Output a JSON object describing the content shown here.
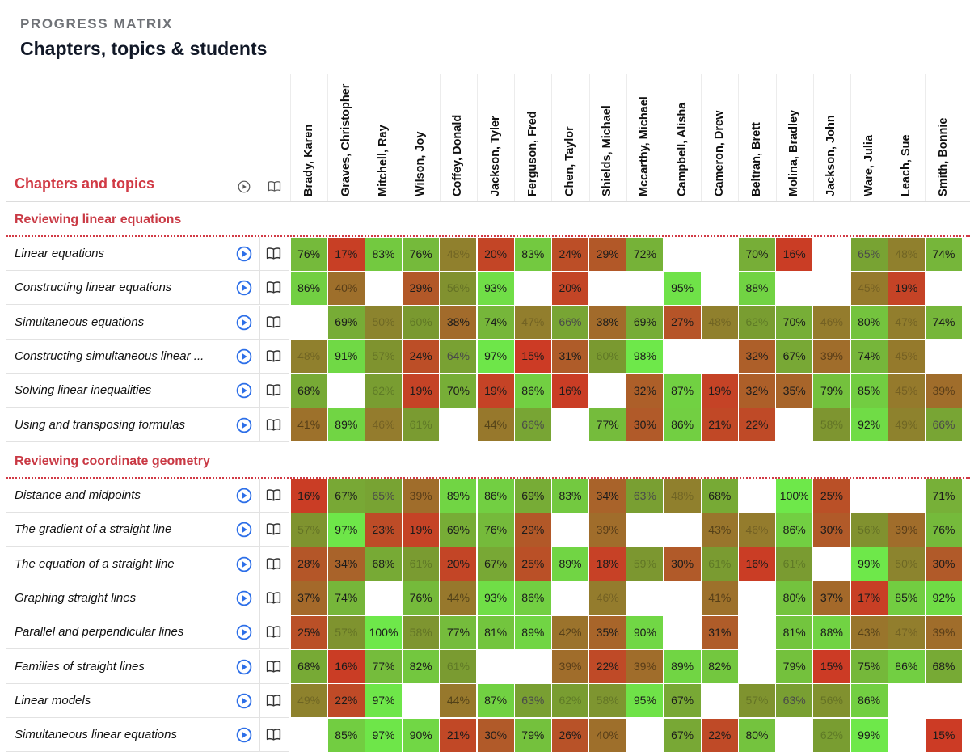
{
  "header": {
    "eyebrow": "PROGRESS MATRIX",
    "title": "Chapters, topics & students"
  },
  "column_header": {
    "label": "Chapters and topics",
    "icons": [
      "play-circle-icon",
      "book-icon"
    ]
  },
  "students": [
    "Brady, Karen",
    "Graves, Christopher",
    "Mitchell, Ray",
    "Wilson, Joy",
    "Coffey, Donald",
    "Jackson, Tyler",
    "Ferguson, Fred",
    "Chen, Taylor",
    "Shields, Michael",
    "Mccarthy, Michael",
    "Campbell, Alisha",
    "Cameron, Drew",
    "Beltran, Brett",
    "Molina, Bradley",
    "Jackson, John",
    "Ware, Julia",
    "Leach, Sue",
    "Smith, Bonnie"
  ],
  "colors": {
    "accent": "#d13a45",
    "play_icon": "#2d6fe8",
    "low": "#cc3b25",
    "high": "#6ee84a"
  },
  "chapters": [
    {
      "title": "Reviewing linear equations",
      "topics": [
        {
          "name": "Linear equations",
          "scores": [
            76,
            17,
            83,
            76,
            48,
            20,
            83,
            24,
            29,
            72,
            null,
            null,
            70,
            16,
            null,
            65,
            48,
            74
          ]
        },
        {
          "name": "Constructing linear equations",
          "scores": [
            86,
            40,
            null,
            29,
            56,
            93,
            null,
            20,
            null,
            null,
            95,
            null,
            88,
            null,
            null,
            45,
            19,
            null
          ]
        },
        {
          "name": "Simultaneous equations",
          "scores": [
            null,
            69,
            50,
            60,
            38,
            74,
            47,
            66,
            38,
            69,
            27,
            48,
            62,
            70,
            46,
            80,
            47,
            74
          ]
        },
        {
          "name": "Constructing simultaneous linear ...",
          "scores": [
            48,
            91,
            57,
            24,
            64,
            97,
            15,
            31,
            60,
            98,
            null,
            null,
            32,
            67,
            39,
            74,
            45,
            null
          ]
        },
        {
          "name": "Solving linear inequalities",
          "scores": [
            68,
            null,
            62,
            19,
            70,
            19,
            86,
            16,
            null,
            32,
            87,
            19,
            32,
            35,
            79,
            85,
            45,
            39
          ]
        },
        {
          "name": "Using and transposing formulas",
          "scores": [
            41,
            89,
            46,
            61,
            null,
            44,
            66,
            null,
            77,
            30,
            86,
            21,
            22,
            null,
            58,
            92,
            49,
            66
          ]
        }
      ]
    },
    {
      "title": "Reviewing coordinate geometry",
      "topics": [
        {
          "name": "Distance and midpoints",
          "scores": [
            16,
            67,
            65,
            39,
            89,
            86,
            69,
            83,
            34,
            63,
            48,
            68,
            null,
            100,
            25,
            null,
            null,
            71
          ]
        },
        {
          "name": "The gradient of a straight line",
          "scores": [
            57,
            97,
            23,
            19,
            69,
            76,
            29,
            null,
            39,
            null,
            null,
            43,
            46,
            86,
            30,
            56,
            39,
            76
          ]
        },
        {
          "name": "The equation of a straight line",
          "scores": [
            28,
            34,
            68,
            61,
            20,
            67,
            25,
            89,
            18,
            59,
            30,
            61,
            16,
            61,
            null,
            99,
            50,
            30
          ]
        },
        {
          "name": "Graphing straight lines",
          "scores": [
            37,
            74,
            null,
            76,
            44,
            93,
            86,
            null,
            46,
            null,
            null,
            41,
            null,
            80,
            37,
            17,
            85,
            92
          ]
        },
        {
          "name": "Parallel and perpendicular lines",
          "scores": [
            25,
            57,
            100,
            58,
            77,
            81,
            89,
            42,
            35,
            90,
            null,
            31,
            null,
            81,
            88,
            43,
            47,
            39
          ]
        },
        {
          "name": "Families of straight lines",
          "scores": [
            68,
            16,
            77,
            82,
            61,
            null,
            null,
            39,
            22,
            39,
            89,
            82,
            null,
            79,
            15,
            75,
            86,
            68
          ]
        },
        {
          "name": "Linear models",
          "scores": [
            49,
            22,
            97,
            null,
            44,
            87,
            63,
            62,
            58,
            95,
            67,
            null,
            57,
            63,
            56,
            86,
            null,
            null
          ]
        },
        {
          "name": "Simultaneous linear equations",
          "scores": [
            null,
            85,
            97,
            90,
            21,
            30,
            79,
            26,
            40,
            null,
            67,
            22,
            80,
            null,
            62,
            99,
            null,
            15
          ]
        }
      ]
    }
  ]
}
